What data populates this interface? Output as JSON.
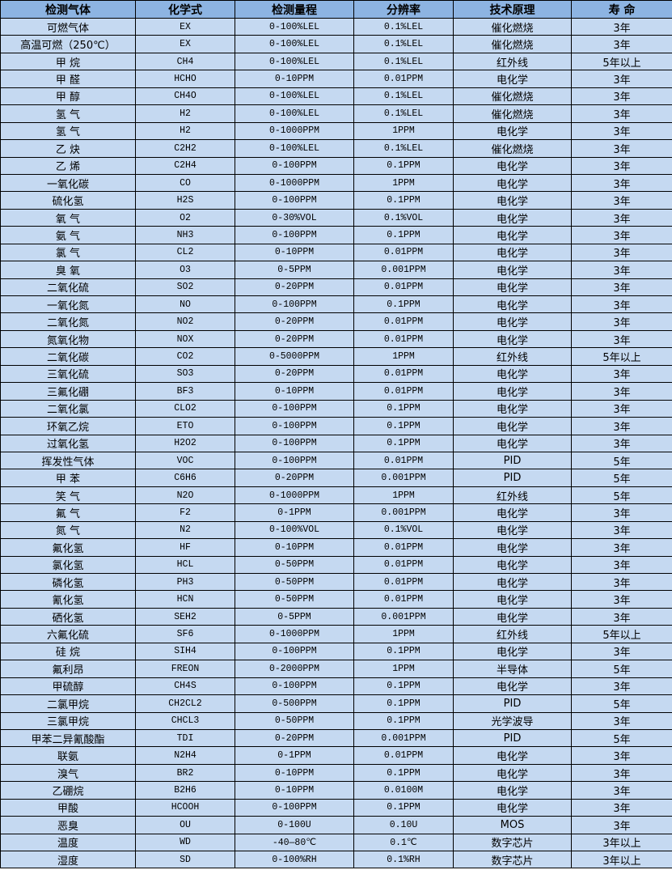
{
  "colors": {
    "header_bg": "#8DB4E2",
    "row_bg": "#C5D9F1",
    "border": "#000000"
  },
  "headers": [
    "检测气体",
    "化学式",
    "检测量程",
    "分辨率",
    "技术原理",
    "寿 命"
  ],
  "rows": [
    [
      "可燃气体",
      "EX",
      "0-100%LEL",
      "0.1%LEL",
      "催化燃烧",
      "3年"
    ],
    [
      "高温可燃（250℃）",
      "EX",
      "0-100%LEL",
      "0.1%LEL",
      "催化燃烧",
      "3年"
    ],
    [
      "甲 烷",
      "CH4",
      "0-100%LEL",
      "0.1%LEL",
      "红外线",
      "5年以上"
    ],
    [
      "甲 醛",
      "HCHO",
      "0-10PPM",
      "0.01PPM",
      "电化学",
      "3年"
    ],
    [
      "甲 醇",
      "CH4O",
      "0-100%LEL",
      "0.1%LEL",
      "催化燃烧",
      "3年"
    ],
    [
      "氢 气",
      "H2",
      "0-100%LEL",
      "0.1%LEL",
      "催化燃烧",
      "3年"
    ],
    [
      "氢 气",
      "H2",
      "0-1000PPM",
      "1PPM",
      "电化学",
      "3年"
    ],
    [
      "乙 炔",
      "C2H2",
      "0-100%LEL",
      "0.1%LEL",
      "催化燃烧",
      "3年"
    ],
    [
      "乙 烯",
      "C2H4",
      "0-100PPM",
      "0.1PPM",
      "电化学",
      "3年"
    ],
    [
      "一氧化碳",
      "CO",
      "0-1000PPM",
      "1PPM",
      "电化学",
      "3年"
    ],
    [
      "硫化氢",
      "H2S",
      "0-100PPM",
      "0.1PPM",
      "电化学",
      "3年"
    ],
    [
      "氧 气",
      "O2",
      "0-30%VOL",
      "0.1%VOL",
      "电化学",
      "3年"
    ],
    [
      "氨 气",
      "NH3",
      "0-100PPM",
      "0.1PPM",
      "电化学",
      "3年"
    ],
    [
      "氯 气",
      "CL2",
      "0-10PPM",
      "0.01PPM",
      "电化学",
      "3年"
    ],
    [
      "臭 氧",
      "O3",
      "0-5PPM",
      "0.001PPM",
      "电化学",
      "3年"
    ],
    [
      "二氧化硫",
      "SO2",
      "0-20PPM",
      "0.01PPM",
      "电化学",
      "3年"
    ],
    [
      "一氧化氮",
      "NO",
      "0-100PPM",
      "0.1PPM",
      "电化学",
      "3年"
    ],
    [
      "二氧化氮",
      "NO2",
      "0-20PPM",
      "0.01PPM",
      "电化学",
      "3年"
    ],
    [
      "氮氧化物",
      "NOX",
      "0-20PPM",
      "0.01PPM",
      "电化学",
      "3年"
    ],
    [
      "二氧化碳",
      "CO2",
      "0-5000PPM",
      "1PPM",
      "红外线",
      "5年以上"
    ],
    [
      "三氧化硫",
      "SO3",
      "0-20PPM",
      "0.01PPM",
      "电化学",
      "3年"
    ],
    [
      "三氟化硼",
      "BF3",
      "0-10PPM",
      "0.01PPM",
      "电化学",
      "3年"
    ],
    [
      "二氧化氯",
      "CLO2",
      "0-100PPM",
      "0.1PPM",
      "电化学",
      "3年"
    ],
    [
      "环氧乙烷",
      "ETO",
      "0-100PPM",
      "0.1PPM",
      "电化学",
      "3年"
    ],
    [
      "过氧化氢",
      "H2O2",
      "0-100PPM",
      "0.1PPM",
      "电化学",
      "3年"
    ],
    [
      "挥发性气体",
      "VOC",
      "0-100PPM",
      "0.01PPM",
      "PID",
      "5年"
    ],
    [
      "甲 苯",
      "C6H6",
      "0-20PPM",
      "0.001PPM",
      "PID",
      "5年"
    ],
    [
      "笑 气",
      "N2O",
      "0-1000PPM",
      "1PPM",
      "红外线",
      "5年"
    ],
    [
      "氟 气",
      "F2",
      "0-1PPM",
      "0.001PPM",
      "电化学",
      "3年"
    ],
    [
      "氮 气",
      "N2",
      "0-100%VOL",
      "0.1%VOL",
      "电化学",
      "3年"
    ],
    [
      "氟化氢",
      "HF",
      "0-10PPM",
      "0.01PPM",
      "电化学",
      "3年"
    ],
    [
      "氯化氢",
      "HCL",
      "0-50PPM",
      "0.01PPM",
      "电化学",
      "3年"
    ],
    [
      "磷化氢",
      "PH3",
      "0-50PPM",
      "0.01PPM",
      "电化学",
      "3年"
    ],
    [
      "氰化氢",
      "HCN",
      "0-50PPM",
      "0.01PPM",
      "电化学",
      "3年"
    ],
    [
      "硒化氢",
      "SEH2",
      "0-5PPM",
      "0.001PPM",
      "电化学",
      "3年"
    ],
    [
      "六氟化硫",
      "SF6",
      "0-1000PPM",
      "1PPM",
      "红外线",
      "5年以上"
    ],
    [
      "硅 烷",
      "SIH4",
      "0-100PPM",
      "0.1PPM",
      "电化学",
      "3年"
    ],
    [
      "氟利昂",
      "FREON",
      "0-2000PPM",
      "1PPM",
      "半导体",
      "5年"
    ],
    [
      "甲硫醇",
      "CH4S",
      "0-100PPM",
      "0.1PPM",
      "电化学",
      "3年"
    ],
    [
      "二氯甲烷",
      "CH2CL2",
      "0-500PPM",
      "0.1PPM",
      "PID",
      "5年"
    ],
    [
      "三氯甲烷",
      "CHCL3",
      "0-50PPM",
      "0.1PPM",
      "光学波导",
      "3年"
    ],
    [
      "甲苯二异氰酸酯",
      "TDI",
      "0-20PPM",
      "0.001PPM",
      "PID",
      "5年"
    ],
    [
      "联氨",
      "N2H4",
      "0-1PPM",
      "0.01PPM",
      "电化学",
      "3年"
    ],
    [
      "溴气",
      "BR2",
      "0-10PPM",
      "0.1PPM",
      "电化学",
      "3年"
    ],
    [
      "乙硼烷",
      "B2H6",
      "0-10PPM",
      "0.0100M",
      "电化学",
      "3年"
    ],
    [
      "甲酸",
      "HCOOH",
      "0-100PPM",
      "0.1PPM",
      "电化学",
      "3年"
    ],
    [
      "恶臭",
      "OU",
      "0-100U",
      "0.10U",
      "MOS",
      "3年"
    ],
    [
      "温度",
      "WD",
      "-40—80℃",
      "0.1℃",
      "数字芯片",
      "3年以上"
    ],
    [
      "湿度",
      "SD",
      "0-100%RH",
      "0.1%RH",
      "数字芯片",
      "3年以上"
    ]
  ]
}
